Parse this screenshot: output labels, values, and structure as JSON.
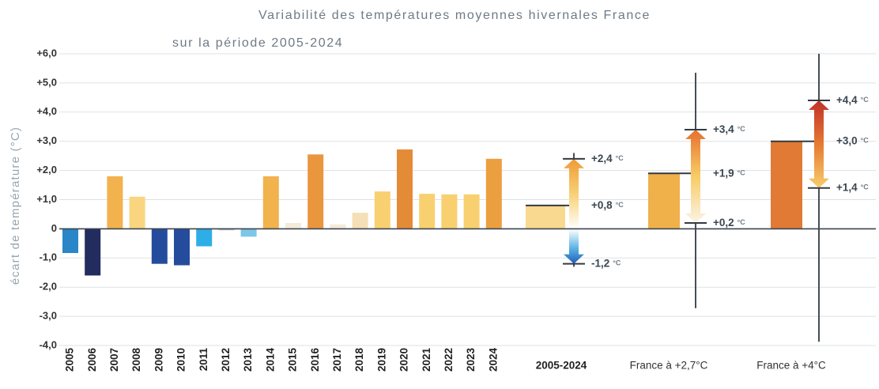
{
  "chart_data": {
    "type": "bar",
    "title": "Variabilité des températures moyennes hivernales France",
    "subtitle": "sur la période 2005-2024",
    "y_label": "écart de température (°C)",
    "unit": "°C",
    "ylim": [
      -4,
      6
    ],
    "yticks": [
      {
        "value": -4,
        "label": "-4,0"
      },
      {
        "value": -3,
        "label": "-3,0"
      },
      {
        "value": -2,
        "label": "-2,0"
      },
      {
        "value": -1,
        "label": "-1,0"
      },
      0,
      {
        "value": 1,
        "label": "+1,0"
      },
      {
        "value": 2,
        "label": "+2,0"
      },
      {
        "value": 3,
        "label": "+3,0"
      },
      {
        "value": 4,
        "label": "+4,0"
      },
      {
        "value": 5,
        "label": "+5,0"
      },
      {
        "value": 6,
        "label": "+6,0"
      }
    ],
    "grid": true,
    "categories": [
      "2005",
      "2006",
      "2007",
      "2008",
      "2009",
      "2010",
      "2011",
      "2012",
      "2013",
      "2014",
      "2015",
      "2016",
      "2017",
      "2018",
      "2019",
      "2020",
      "2021",
      "2022",
      "2023",
      "2024"
    ],
    "values": [
      -0.83,
      -1.6,
      1.8,
      1.1,
      -1.2,
      -1.25,
      -0.6,
      -0.05,
      -0.27,
      1.8,
      0.2,
      2.55,
      0.15,
      0.55,
      1.28,
      2.72,
      1.2,
      1.18,
      1.18,
      2.4
    ],
    "colors": [
      "#2b86c7",
      "#232c5e",
      "#f2b24d",
      "#f8d57e",
      "#254c9c",
      "#254c9c",
      "#2eaee6",
      "#b9c3cc",
      "#7cc6e8",
      "#f2b24d",
      "#f3ead8",
      "#e9963f",
      "#f3ead8",
      "#f5dfb6",
      "#f8d06f",
      "#e48b38",
      "#f8d06f",
      "#f8d06f",
      "#f8d06f",
      "#ec9f3f"
    ],
    "scenarios": [
      {
        "name": "2005-2024",
        "mean": 0.8,
        "low": -1.2,
        "high": 2.4,
        "whisker": [
          -1.3,
          2.6
        ],
        "mean_label": "+0,8",
        "low_label": "-1,2",
        "high_label": "+2,4",
        "color": "#f9d88f"
      },
      {
        "name": "France à +2,7°C",
        "mean": 1.9,
        "low": 0.2,
        "high": 3.4,
        "whisker": [
          -2.72,
          5.35
        ],
        "mean_label": "+1,9",
        "low_label": "+0,2",
        "high_label": "+3,4",
        "color": "#f0b04a"
      },
      {
        "name": "France à +4°C",
        "mean": 3.0,
        "low": 1.4,
        "high": 4.4,
        "whisker": [
          -3.87,
          6.0
        ],
        "mean_label": "+3,0",
        "low_label": "+1,4",
        "high_label": "+4,4",
        "color": "#e07a35"
      }
    ]
  }
}
